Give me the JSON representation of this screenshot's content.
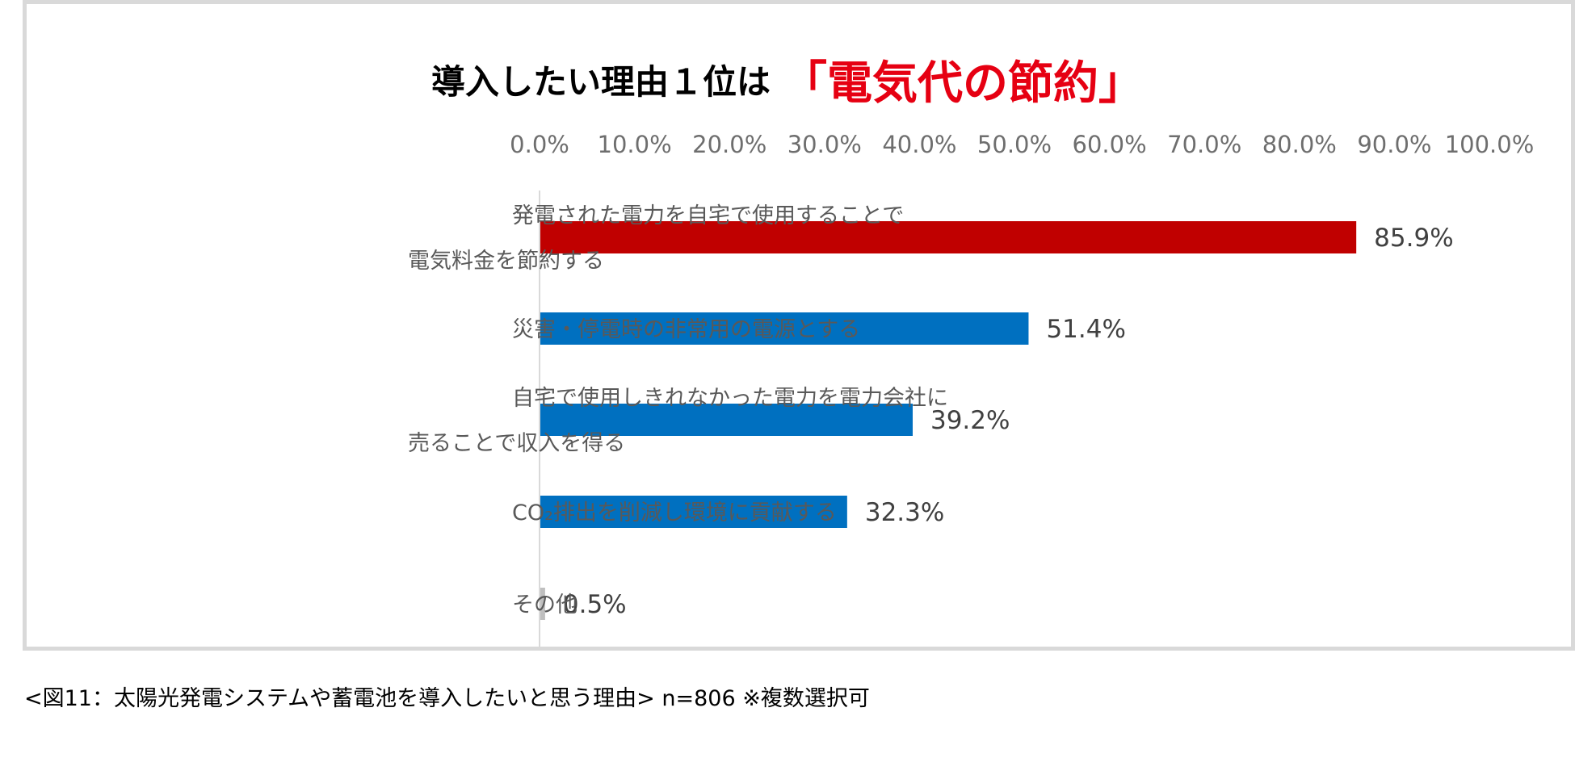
{
  "title": {
    "prefix": "導入したい理由１位は",
    "highlight": "「電気代の節約」"
  },
  "caption": "<図11：太陽光発電システムや蓄電池を導入したいと思う理由> n=806 ※複数選択可",
  "chart_data": {
    "type": "bar",
    "orientation": "horizontal",
    "xlim": [
      0,
      100
    ],
    "x_tick_labels": [
      "0.0%",
      "10.0%",
      "20.0%",
      "30.0%",
      "40.0%",
      "50.0%",
      "60.0%",
      "70.0%",
      "80.0%",
      "90.0%",
      "100.0%"
    ],
    "x_axis_position": "top",
    "grid": false,
    "categories": [
      [
        "発電された電力を自宅で使用することで",
        "電気料金を節約する"
      ],
      [
        "災害・停電時の非常用の電源とする"
      ],
      [
        "自宅で使用しきれなかった電力を電力会社に",
        "売ることで収入を得る"
      ],
      [
        "CO₂排出を削減し環境に貢献する"
      ],
      [
        "その他"
      ]
    ],
    "values": [
      85.9,
      51.4,
      39.2,
      32.3,
      0.5
    ],
    "value_labels": [
      "85.9%",
      "51.4%",
      "39.2%",
      "32.3%",
      "0.5%"
    ],
    "colors": [
      "#c00000",
      "#0070c0",
      "#0070c0",
      "#0070c0",
      "#bfbfbf"
    ]
  }
}
